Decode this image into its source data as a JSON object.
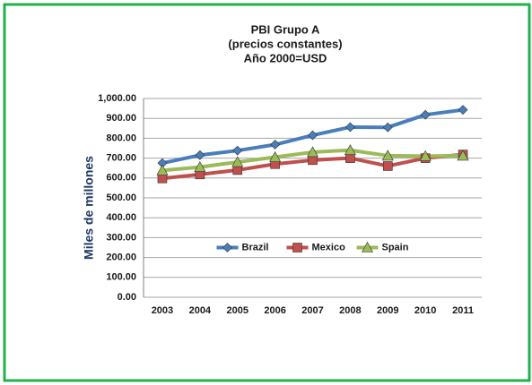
{
  "chart_data": {
    "type": "line",
    "title": [
      "PBI Grupo A",
      "(precios constantes)",
      "Año 2000=USD"
    ],
    "y_label": "Miles de millones",
    "categories": [
      "2003",
      "2004",
      "2005",
      "2006",
      "2007",
      "2008",
      "2009",
      "2010",
      "2011"
    ],
    "series": [
      {
        "name": "Brazil",
        "color": "#4a7ebb",
        "marker": "diamond",
        "values": [
          675,
          715,
          738,
          768,
          815,
          856,
          855,
          918,
          943
        ]
      },
      {
        "name": "Mexico",
        "color": "#c0504d",
        "marker": "square",
        "values": [
          598,
          618,
          640,
          670,
          690,
          700,
          660,
          700,
          718
        ]
      },
      {
        "name": "Spain",
        "color": "#9bbb59",
        "marker": "triangle",
        "values": [
          638,
          655,
          680,
          705,
          730,
          740,
          712,
          710,
          712
        ]
      }
    ],
    "ylim": [
      0,
      1000
    ],
    "yticks": [
      {
        "value": 0,
        "label": "0.00"
      },
      {
        "value": 100,
        "label": "100.00"
      },
      {
        "value": 200,
        "label": "200.00"
      },
      {
        "value": 300,
        "label": "300.00"
      },
      {
        "value": 400,
        "label": "400.00"
      },
      {
        "value": 500,
        "label": "500.00"
      },
      {
        "value": 600,
        "label": "600.00"
      },
      {
        "value": 700,
        "label": "700.00"
      },
      {
        "value": 800,
        "label": "800.00"
      },
      {
        "value": 900,
        "label": "900.00"
      },
      {
        "value": 1000,
        "label": "1,000.00"
      }
    ],
    "grid": true,
    "legend": "center"
  }
}
